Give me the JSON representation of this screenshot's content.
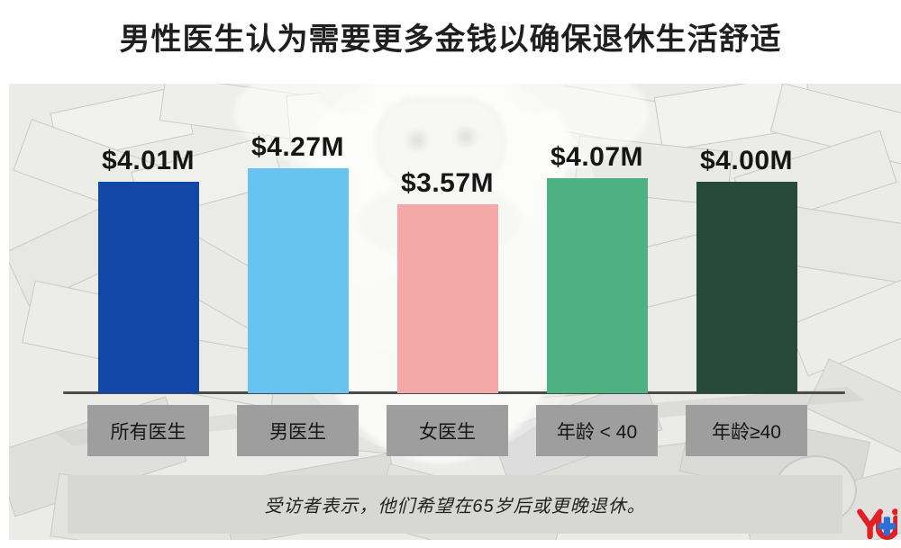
{
  "chart_data": {
    "type": "bar",
    "title": "男性医生认为需要更多金钱以确保退休生活舒适",
    "categories": [
      "所有医生",
      "男医生",
      "女医生",
      "年龄 < 40",
      "年龄≥40"
    ],
    "values": [
      4.01,
      4.27,
      3.57,
      4.07,
      4.0
    ],
    "value_labels": [
      "$4.01M",
      "$4.27M",
      "$3.57M",
      "$4.07M",
      "$4.00M"
    ],
    "bar_colors": [
      "#1247a8",
      "#67c3ef",
      "#f5a8a8",
      "#4db181",
      "#264a3b"
    ],
    "footnote": "受访者表示，他们希望在65岁后或更晚退休。",
    "xlabel": "",
    "ylabel": "",
    "legend": "none",
    "grid": "off",
    "baseline_axis": true
  },
  "decor": {
    "category_box_color": "#9e9e9e",
    "footnote_box_color": "#d7d7d3",
    "axis_color": "#4a4a4a",
    "background_theme": "grayscale scattered dollar bills with white piggy bank",
    "logo": {
      "text": "YJ",
      "red": "#e01f26",
      "blue": "#2e6fd6"
    }
  }
}
